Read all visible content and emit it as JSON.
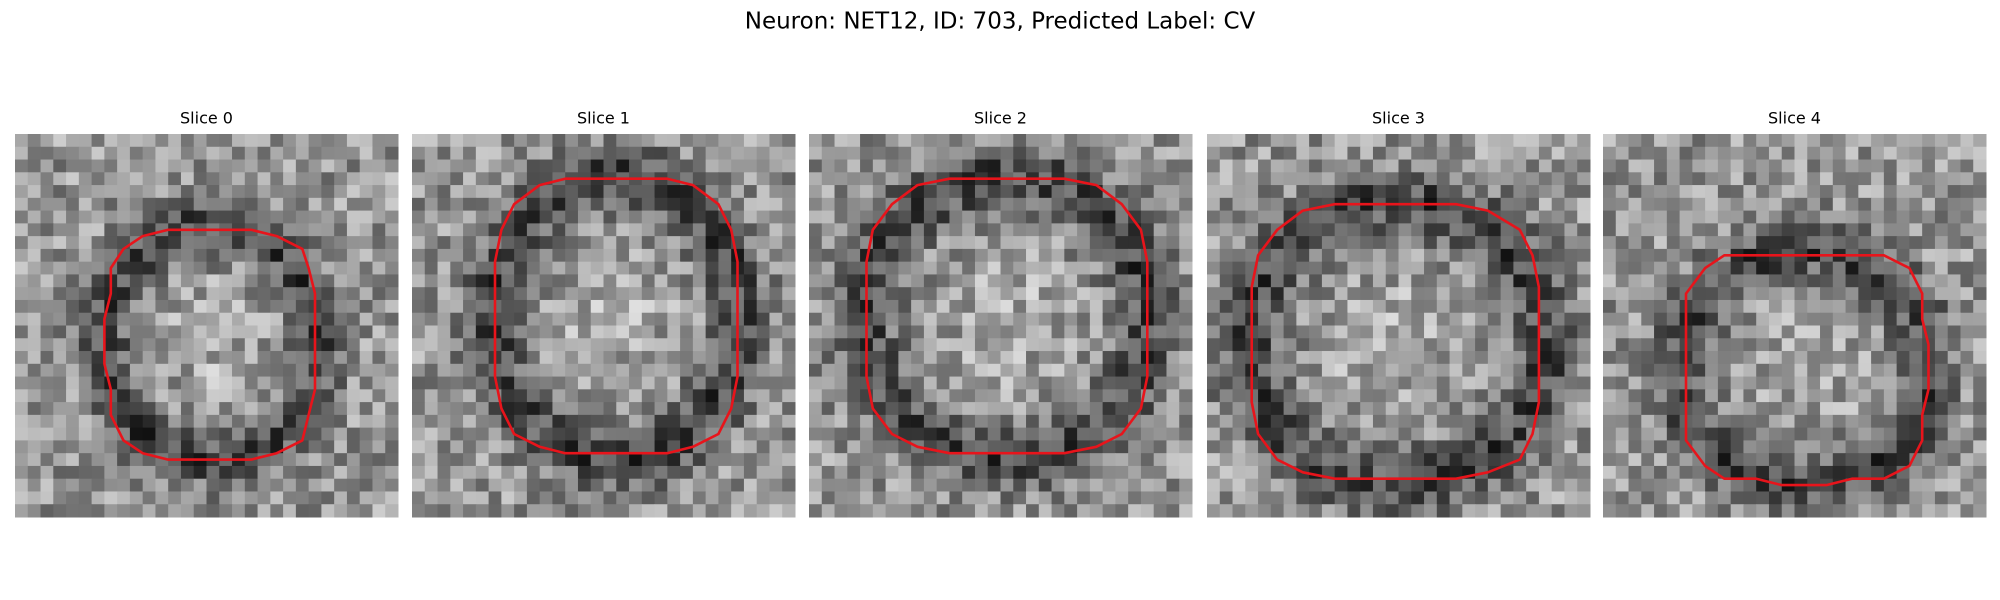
{
  "title": "Neuron: NET12, ID: 703, Predicted Label: CV",
  "panels": [
    {
      "title": "Slice 0"
    },
    {
      "title": "Slice 1"
    },
    {
      "title": "Slice 2"
    },
    {
      "title": "Slice 3"
    },
    {
      "title": "Slice 4"
    }
  ]
}
